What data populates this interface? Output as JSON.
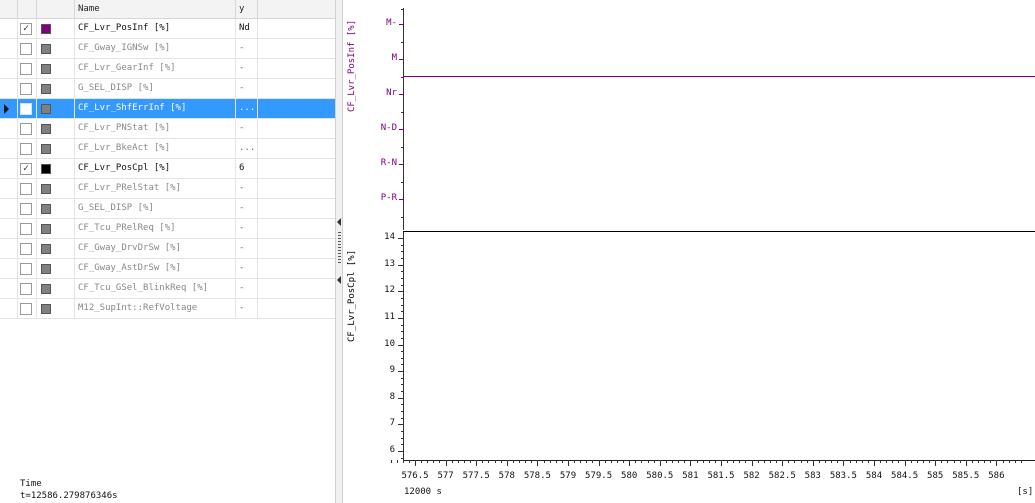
{
  "list": {
    "columns": {
      "name": "Name",
      "y": "y"
    },
    "rows": [
      {
        "name": "CF_Lvr_PosInf [%]",
        "y": "Nd",
        "checked": true,
        "color": "#800080",
        "selected": false
      },
      {
        "name": "CF_Gway_IGNSw [%]",
        "y": "-",
        "checked": false,
        "color": "#808080",
        "selected": false
      },
      {
        "name": "CF_Lvr_GearInf [%]",
        "y": "-",
        "checked": false,
        "color": "#808080",
        "selected": false
      },
      {
        "name": "G_SEL_DISP [%]",
        "y": "-",
        "checked": false,
        "color": "#808080",
        "selected": false
      },
      {
        "name": "CF_Lvr_ShfErrInf [%]",
        "y": "...",
        "checked": false,
        "color": "#808080",
        "selected": true
      },
      {
        "name": "CF_Lvr_PNStat [%]",
        "y": "-",
        "checked": false,
        "color": "#808080",
        "selected": false
      },
      {
        "name": "CF_Lvr_BkeAct [%]",
        "y": "...",
        "checked": false,
        "color": "#808080",
        "selected": false
      },
      {
        "name": "CF_Lvr_PosCpl [%]",
        "y": "6",
        "checked": true,
        "color": "#000000",
        "selected": false
      },
      {
        "name": "CF_Lvr_PRelStat [%]",
        "y": "-",
        "checked": false,
        "color": "#808080",
        "selected": false
      },
      {
        "name": "G_SEL_DISP [%]",
        "y": "-",
        "checked": false,
        "color": "#808080",
        "selected": false
      },
      {
        "name": "CF_Tcu_PRelReq [%]",
        "y": "-",
        "checked": false,
        "color": "#808080",
        "selected": false
      },
      {
        "name": "CF_Gway_DrvDrSw [%]",
        "y": "-",
        "checked": false,
        "color": "#808080",
        "selected": false
      },
      {
        "name": "CF_Gway_AstDrSw [%]",
        "y": "-",
        "checked": false,
        "color": "#808080",
        "selected": false
      },
      {
        "name": "CF_Tcu_GSel_BlinkReq [%]",
        "y": "-",
        "checked": false,
        "color": "#808080",
        "selected": false
      },
      {
        "name": "M12_SupInt::RefVoltage",
        "y": "-",
        "checked": false,
        "color": "#808080",
        "selected": false
      }
    ]
  },
  "time": {
    "label": "Time",
    "value": "t=12586.279876346s"
  },
  "plot": {
    "top_panel": {
      "label": "CF_Lvr_PosInf [%]",
      "color": "#800080",
      "ticks": [
        "M-",
        "M",
        "Nr",
        "N-D",
        "R-N",
        "P-R"
      ],
      "value": "Nr"
    },
    "bottom_panel": {
      "label": "CF_Lvr_PosCpl [%]",
      "color": "#000000",
      "ticks": [
        "14",
        "13",
        "12",
        "11",
        "10",
        "9",
        "8",
        "7",
        "6"
      ],
      "ylim": [
        6,
        14
      ],
      "value": 14
    },
    "x_axis": {
      "ticks": [
        "576.5",
        "577",
        "577.5",
        "578",
        "578.5",
        "579",
        "579.5",
        "580",
        "580.5",
        "581",
        "581.5",
        "582",
        "582.5",
        "583",
        "583.5",
        "584",
        "584.5",
        "585",
        "585.5",
        "586"
      ],
      "offset_label": "12000 s",
      "unit": "[s]"
    }
  }
}
